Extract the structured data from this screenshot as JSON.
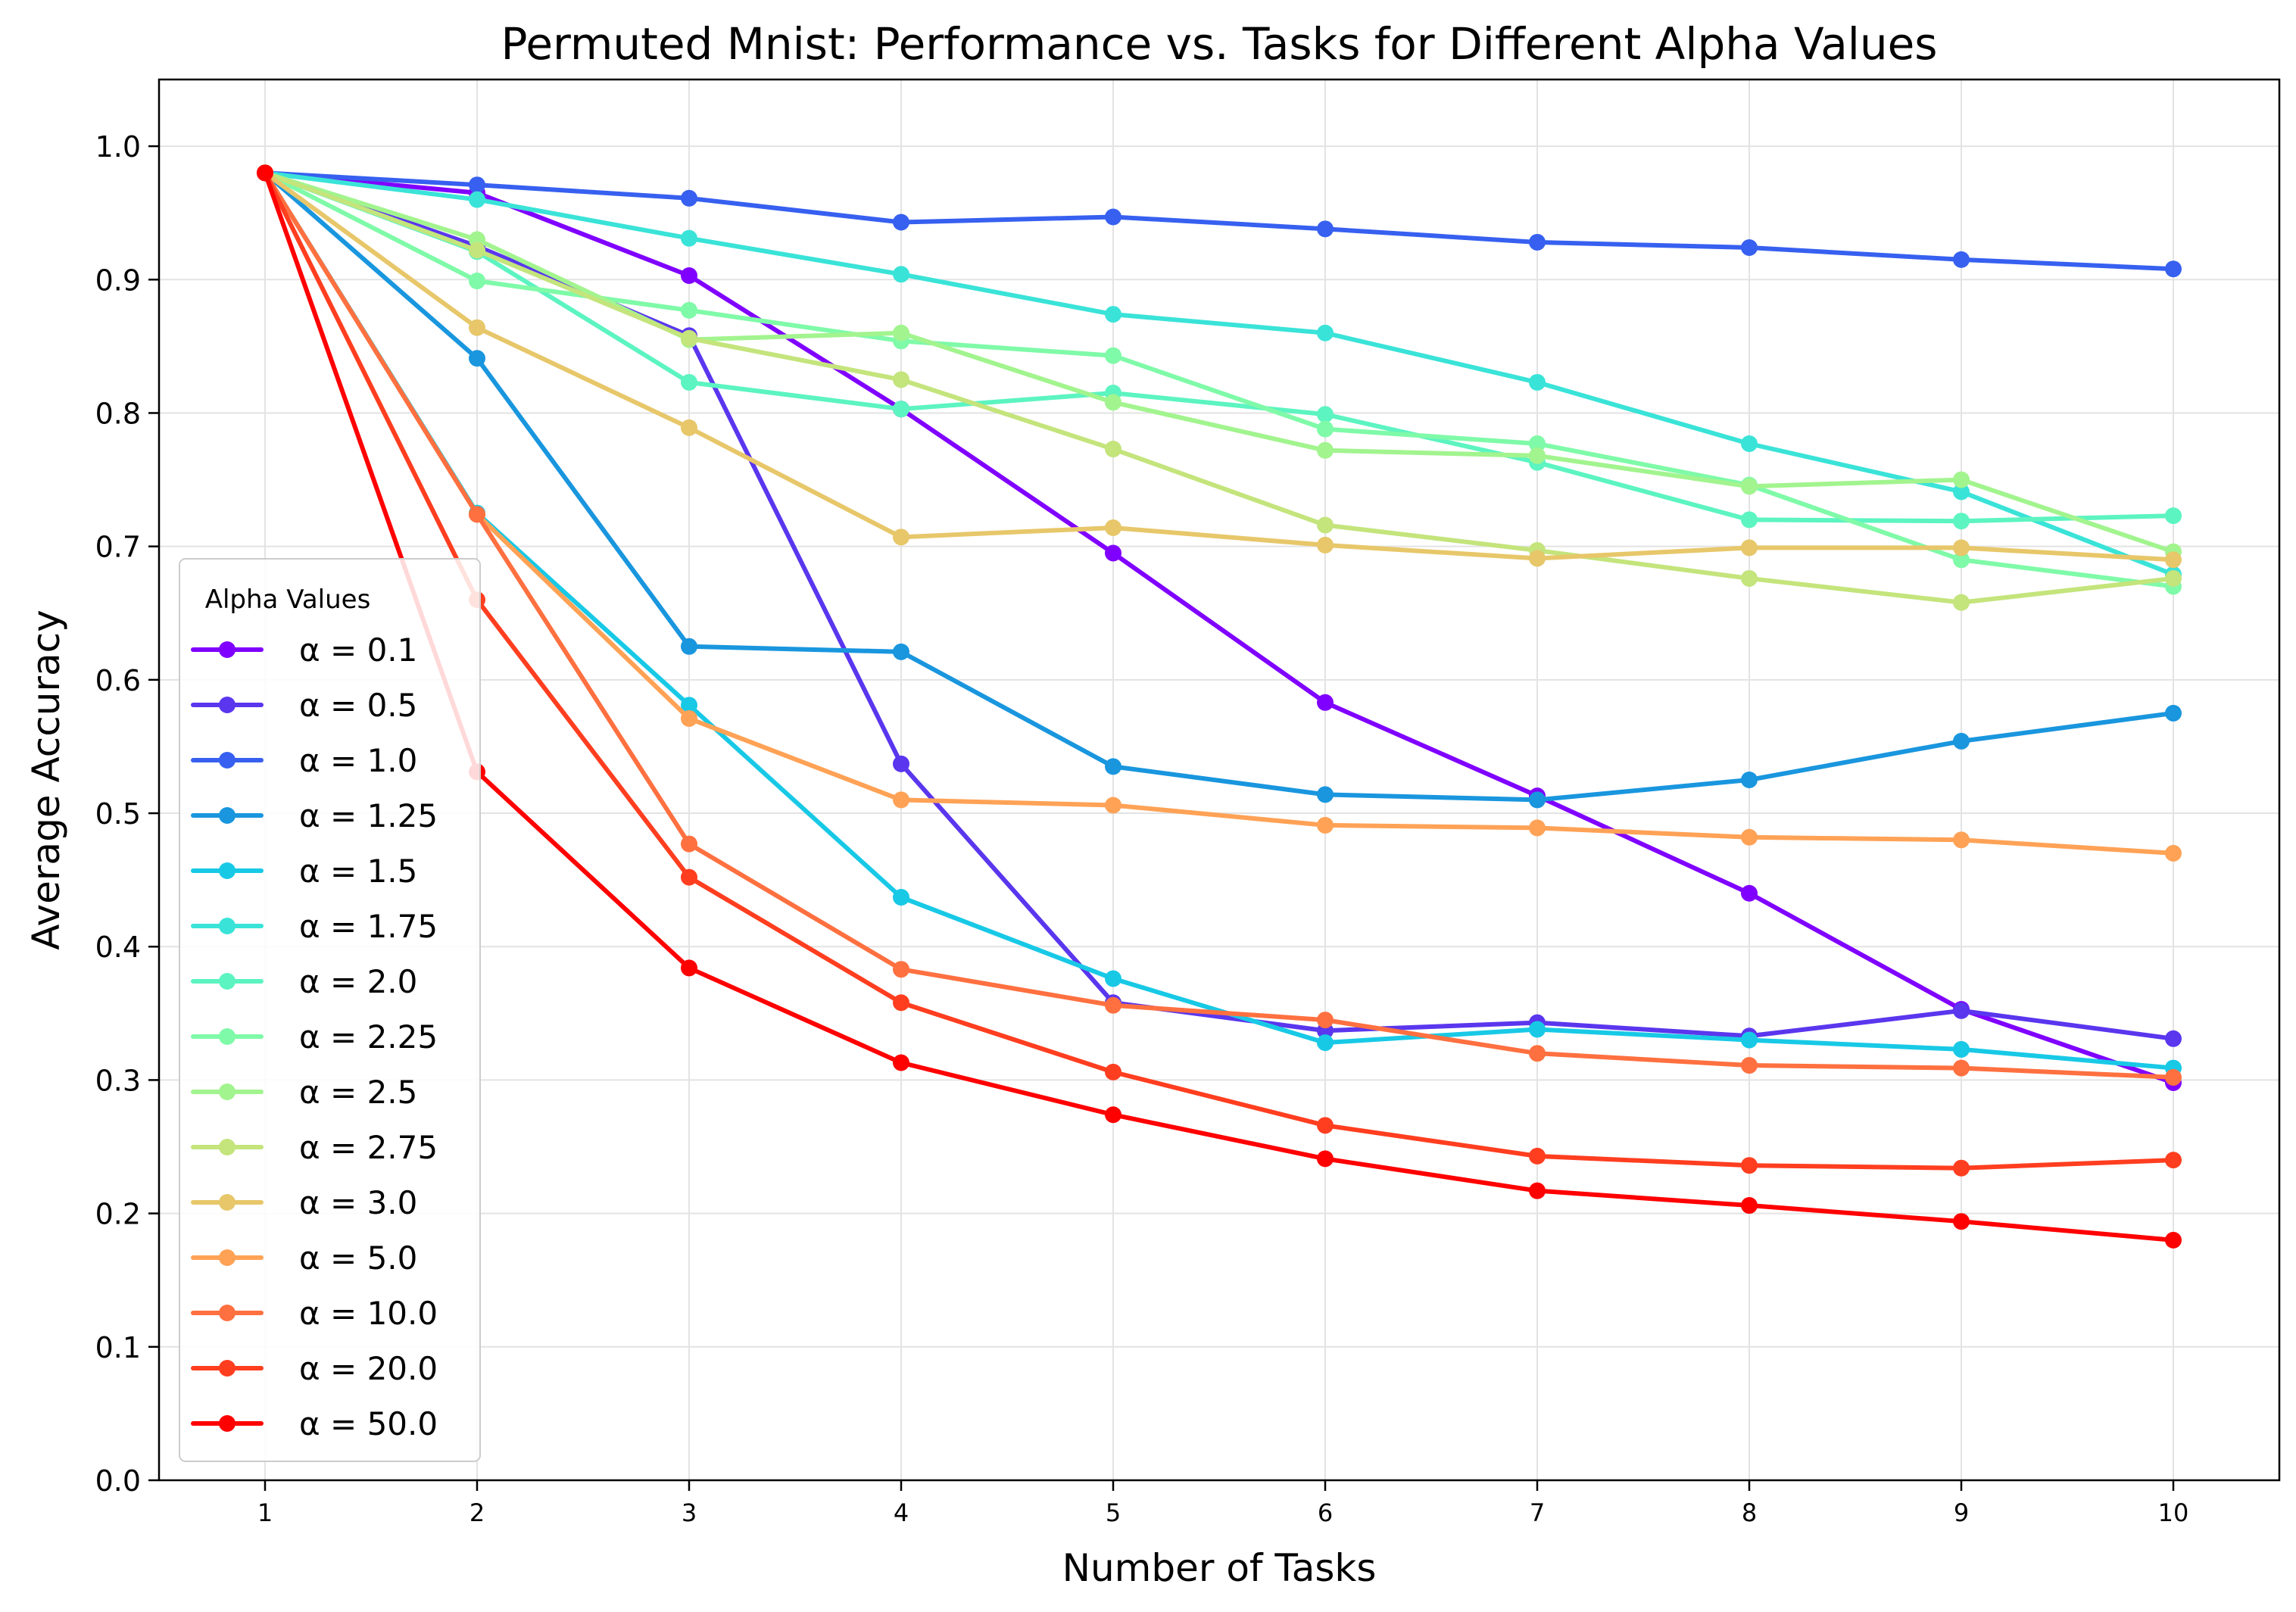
{
  "chart_data": {
    "type": "line",
    "title": "Permuted Mnist: Performance vs. Tasks for Different Alpha Values",
    "xlabel": "Number of Tasks",
    "ylabel": "Average Accuracy",
    "x": [
      1,
      2,
      3,
      4,
      5,
      6,
      7,
      8,
      9,
      10
    ],
    "xlim": [
      0.5,
      10.5
    ],
    "ylim": [
      0.0,
      1.05
    ],
    "xticks": [
      "1",
      "2",
      "3",
      "4",
      "5",
      "6",
      "7",
      "8",
      "9",
      "10"
    ],
    "yticks": [
      "0.0",
      "0.1",
      "0.2",
      "0.3",
      "0.4",
      "0.5",
      "0.6",
      "0.7",
      "0.8",
      "0.9",
      "1.0"
    ],
    "grid": true,
    "legend": {
      "title": "Alpha Values",
      "placement": "lower-left"
    },
    "series": [
      {
        "name": "α = 0.1",
        "color": "#8000ff",
        "values": [
          0.98,
          0.965,
          0.903,
          0.803,
          0.695,
          0.583,
          0.513,
          0.44,
          0.353,
          0.298
        ]
      },
      {
        "name": "α = 0.5",
        "color": "#5a36ee",
        "values": [
          0.98,
          0.925,
          0.858,
          0.537,
          0.358,
          0.337,
          0.343,
          0.333,
          0.352,
          0.331
        ]
      },
      {
        "name": "α = 1.0",
        "color": "#3760f0",
        "values": [
          0.98,
          0.971,
          0.961,
          0.943,
          0.947,
          0.938,
          0.928,
          0.924,
          0.915,
          0.908
        ]
      },
      {
        "name": "α = 1.25",
        "color": "#1996de",
        "values": [
          0.98,
          0.841,
          0.625,
          0.621,
          0.535,
          0.514,
          0.51,
          0.525,
          0.554,
          0.575
        ]
      },
      {
        "name": "α = 1.5",
        "color": "#18c9e6",
        "values": [
          0.98,
          0.725,
          0.581,
          0.437,
          0.376,
          0.328,
          0.338,
          0.33,
          0.323,
          0.309
        ]
      },
      {
        "name": "α = 1.75",
        "color": "#3ae3d8",
        "values": [
          0.98,
          0.96,
          0.931,
          0.904,
          0.874,
          0.86,
          0.823,
          0.777,
          0.741,
          0.679
        ]
      },
      {
        "name": "α = 2.0",
        "color": "#5cf4c0",
        "values": [
          0.98,
          0.921,
          0.823,
          0.803,
          0.815,
          0.799,
          0.763,
          0.72,
          0.719,
          0.723
        ]
      },
      {
        "name": "α = 2.25",
        "color": "#7ffaa8",
        "values": [
          0.98,
          0.899,
          0.877,
          0.854,
          0.843,
          0.788,
          0.777,
          0.746,
          0.69,
          0.67
        ]
      },
      {
        "name": "α = 2.5",
        "color": "#a2f48e",
        "values": [
          0.98,
          0.93,
          0.855,
          0.86,
          0.808,
          0.772,
          0.768,
          0.745,
          0.75,
          0.696
        ]
      },
      {
        "name": "α = 2.75",
        "color": "#c4e47c",
        "values": [
          0.98,
          0.922,
          0.856,
          0.825,
          0.773,
          0.716,
          0.697,
          0.676,
          0.658,
          0.676
        ]
      },
      {
        "name": "α = 3.0",
        "color": "#e7c76a",
        "values": [
          0.98,
          0.864,
          0.789,
          0.707,
          0.714,
          0.701,
          0.691,
          0.699,
          0.699,
          0.69
        ]
      },
      {
        "name": "α = 5.0",
        "color": "#ffa256",
        "values": [
          0.98,
          0.724,
          0.571,
          0.51,
          0.506,
          0.491,
          0.489,
          0.482,
          0.48,
          0.47
        ]
      },
      {
        "name": "α = 10.0",
        "color": "#ff7040",
        "values": [
          0.98,
          0.724,
          0.477,
          0.383,
          0.356,
          0.345,
          0.32,
          0.311,
          0.309,
          0.302
        ]
      },
      {
        "name": "α = 20.0",
        "color": "#ff3e20",
        "values": [
          0.98,
          0.66,
          0.452,
          0.358,
          0.306,
          0.266,
          0.243,
          0.236,
          0.234,
          0.24
        ]
      },
      {
        "name": "α = 50.0",
        "color": "#ff0000",
        "values": [
          0.98,
          0.531,
          0.384,
          0.313,
          0.274,
          0.241,
          0.217,
          0.206,
          0.194,
          0.18
        ]
      }
    ]
  }
}
